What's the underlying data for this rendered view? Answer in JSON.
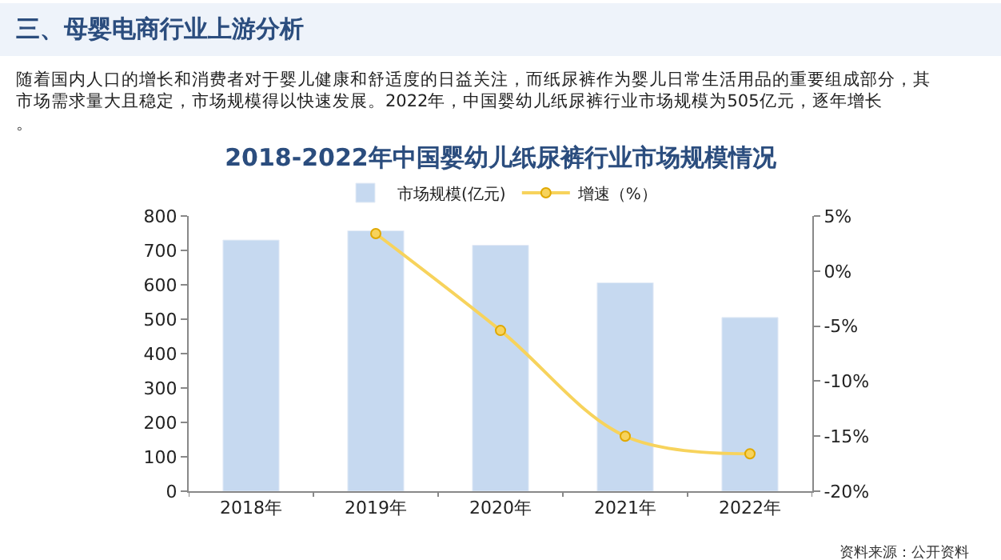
{
  "chart_data": {
    "type": "bar",
    "title": "2018-2022年中国婴幼儿纸尿裤行业市场规模情况",
    "subtitle": "随着国内人口的增长和消费者对于婴儿健康和舒适度的日益关注，而纸尿裤作为婴儿日常生活用品的重要组成部分，其市场需求量大且稳定，市场规模得以快速发展。2022年，中国婴幼儿纸尿裤行业市场规模为505亿元，逐年增长。",
    "annotations": [
      "三、母婴电商行业上游分析",
      "资料来源：公开资料"
    ],
    "categories": [
      "2018年",
      "2019年",
      "2020年",
      "2021年",
      "2022年"
    ],
    "series": [
      {
        "name": "市场规模(亿元)",
        "color": "#c6d9f0",
        "values": [
          730,
          757,
          715,
          606,
          505
        ]
      },
      {
        "name": "增速（%）",
        "type": "line",
        "axis": "y2",
        "color": "#f7d35c",
        "marker": "circle",
        "values": [
          null,
          3.4,
          -5.4,
          -15.0,
          -16.6
        ]
      }
    ],
    "ylim": [
      0,
      800
    ],
    "yticks": [
      0,
      100,
      200,
      300,
      400,
      500,
      600,
      700,
      800
    ],
    "y2lim": [
      -20,
      5
    ],
    "y2ticks": [
      {
        "value": -20,
        "label": "-20%"
      },
      {
        "value": -15,
        "label": "-15%"
      },
      {
        "value": -10,
        "label": "-10%"
      },
      {
        "value": -5,
        "label": "-5%"
      },
      {
        "value": 0,
        "label": "0%"
      },
      {
        "value": 5,
        "label": "5%"
      }
    ],
    "legend": "top",
    "grid": false
  }
}
